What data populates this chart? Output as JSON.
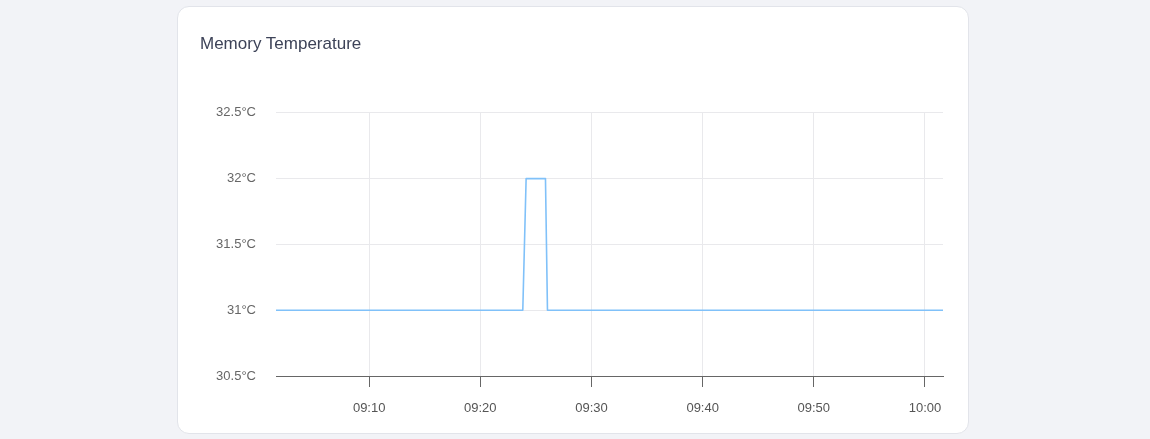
{
  "chart_data": {
    "type": "line",
    "title": "Memory Temperature",
    "x": [
      9.027,
      9.397,
      9.402,
      9.431,
      9.434,
      10.027
    ],
    "values": [
      31,
      31,
      32,
      32,
      31,
      31
    ],
    "color": "#80c1f9",
    "xlim": [
      9.027,
      10.027
    ],
    "xticks": [
      {
        "value": 9.1667,
        "label": "09:10"
      },
      {
        "value": 9.3333,
        "label": "09:20"
      },
      {
        "value": 9.5,
        "label": "09:30"
      },
      {
        "value": 9.6667,
        "label": "09:40"
      },
      {
        "value": 9.8333,
        "label": "09:50"
      },
      {
        "value": 10,
        "label": "10:00"
      }
    ],
    "ylim": [
      30.5,
      32.5
    ],
    "yticks": [
      {
        "value": 30.5,
        "label": "30.5°C"
      },
      {
        "value": 31,
        "label": "31°C"
      },
      {
        "value": 31.5,
        "label": "31.5°C"
      },
      {
        "value": 32,
        "label": "32°C"
      },
      {
        "value": 32.5,
        "label": "32.5°C"
      }
    ],
    "grid": true,
    "marker": "none",
    "line_style": "solid"
  }
}
